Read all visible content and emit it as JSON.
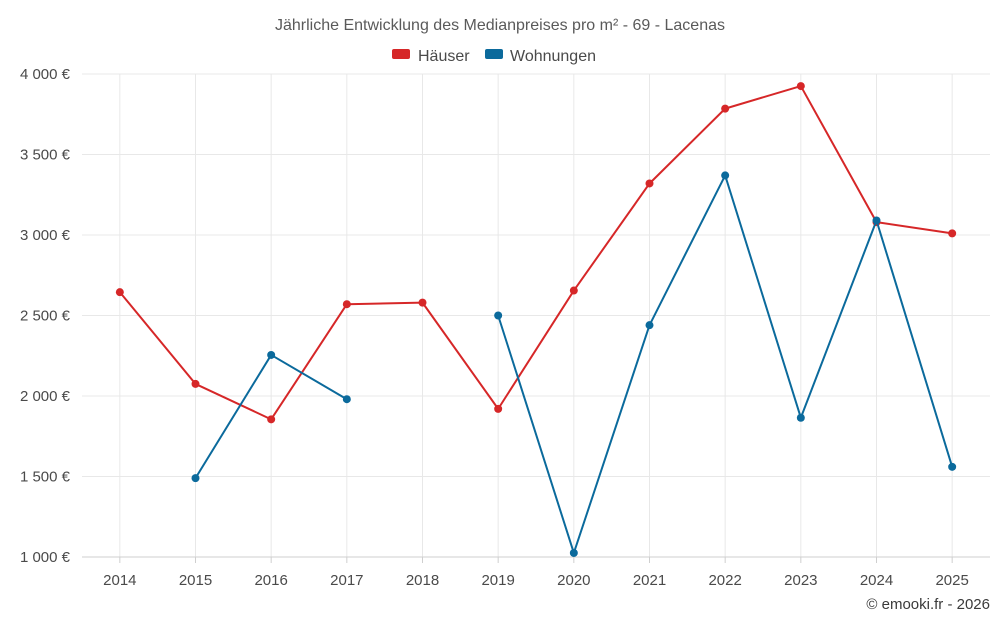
{
  "chart_data": {
    "type": "line",
    "title": "Jährliche Entwicklung des Medianpreises pro m² - 69 - Lacenas",
    "credit": "© emooki.fr - 2026",
    "categories": [
      "2014",
      "2015",
      "2016",
      "2017",
      "2018",
      "2019",
      "2020",
      "2021",
      "2022",
      "2023",
      "2024",
      "2025"
    ],
    "y_tick_labels": [
      "1 000 €",
      "1 500 €",
      "2 000 €",
      "2 500 €",
      "3 000 €",
      "3 500 €",
      "4 000 €"
    ],
    "ylim": [
      1000,
      4000
    ],
    "grid": true,
    "legend_position": "top-center",
    "series": [
      {
        "name": "Häuser",
        "color": "#d62728",
        "values": [
          2645,
          2075,
          1855,
          2570,
          2580,
          1920,
          2655,
          3320,
          3785,
          3925,
          3080,
          3010
        ]
      },
      {
        "name": "Wohnungen",
        "color": "#0b6a9c",
        "values": [
          null,
          1490,
          2255,
          1980,
          null,
          2500,
          1025,
          2440,
          3370,
          1865,
          3090,
          1560
        ]
      }
    ]
  }
}
